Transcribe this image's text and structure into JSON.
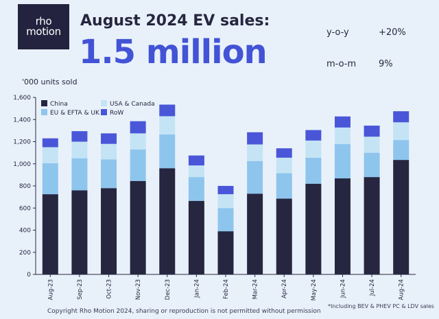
{
  "logo": {
    "line1": "rho",
    "line2": "motion"
  },
  "header": {
    "title": "August 2024 EV sales:",
    "headline": "1.5 million",
    "yoy_label": "y-o-y",
    "yoy_value": "+20%",
    "mom_label": "m-o-m",
    "mom_value": "9%"
  },
  "footer": {
    "copyright": "Copyright Rho Motion 2024, sharing or reproduction is not permitted without permission",
    "note": "*Including BEV & PHEV PC & LDV sales"
  },
  "colors": {
    "China": "#262640",
    "EU & EFTA & UK": "#8ec5ed",
    "USA & Canada": "#c4e4f5",
    "RoW": "#4a56d8"
  },
  "chart_data": {
    "type": "bar",
    "stacked": true,
    "ylabel": "'000 units sold",
    "ylim": [
      0,
      1600
    ],
    "yticks": [
      0,
      200,
      400,
      600,
      800,
      1000,
      1200,
      1400,
      1600
    ],
    "ytick_labels": [
      "0",
      "200",
      "400",
      "600",
      "800",
      "1,000",
      "1,200",
      "1,400",
      "1,600"
    ],
    "grid": false,
    "legend_position": "top-left",
    "categories": [
      "Aug-23",
      "Sep-23",
      "Oct-23",
      "Nov-23",
      "Dec-23",
      "Jan-24",
      "Feb-24",
      "Mar-24",
      "Apr-24",
      "May-24",
      "Jun-24",
      "Jul-24",
      "Aug-24"
    ],
    "series": [
      {
        "name": "China",
        "values": [
          725,
          760,
          780,
          845,
          960,
          665,
          390,
          730,
          685,
          820,
          868,
          880,
          1035
        ]
      },
      {
        "name": "EU & EFTA & UK",
        "values": [
          280,
          290,
          260,
          285,
          305,
          215,
          210,
          295,
          230,
          235,
          310,
          220,
          180
        ]
      },
      {
        "name": "USA & Canada",
        "values": [
          145,
          150,
          140,
          145,
          165,
          105,
          125,
          150,
          140,
          155,
          150,
          145,
          160
        ]
      },
      {
        "name": "RoW",
        "values": [
          80,
          95,
          95,
          110,
          105,
          90,
          75,
          110,
          85,
          95,
          100,
          100,
          100
        ]
      }
    ],
    "legend_order": [
      "China",
      "USA & Canada",
      "EU & EFTA & UK",
      "RoW"
    ]
  }
}
